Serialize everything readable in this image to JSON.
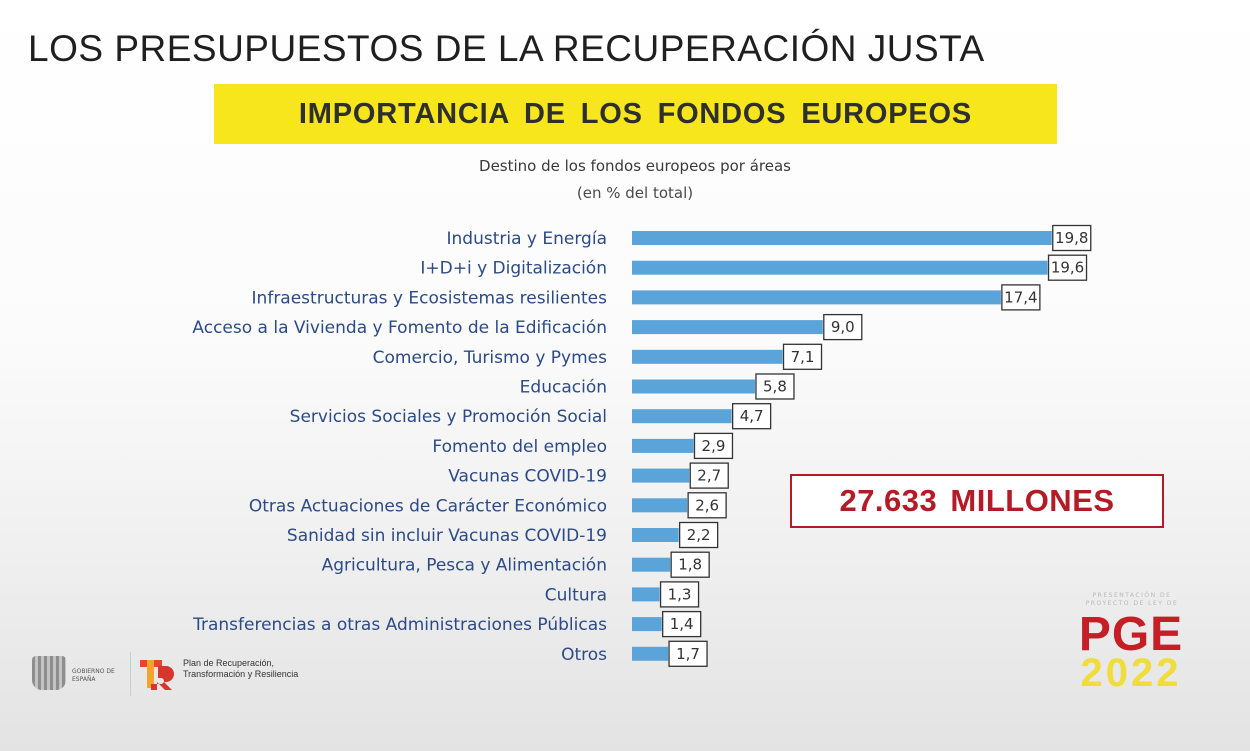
{
  "slide_title": "LOS PRESUPUESTOS DE LA RECUPERACIÓN JUSTA",
  "banner": "IMPORTANCIA DE LOS FONDOS EUROPEOS",
  "total": "27.633 MILLONES",
  "footer": {
    "gov_text": "GOBIERNO DE ESPAÑA",
    "plan_text": "Plan de Recuperación, Transformación y Resiliencia"
  },
  "pge_logo": {
    "small_text": "PRESENTACIÓN DE PROYECTO DE LEY DE",
    "brand": "PGE",
    "year": "2022"
  },
  "colors": {
    "bar": "#5aa4da",
    "label": "#2b4a86",
    "banner": "#f7e61c",
    "total": "#b31b27"
  },
  "chart_data": {
    "type": "bar",
    "orientation": "horizontal",
    "title": "Destino de los fondos europeos por áreas",
    "subtitle": "(en % del total)",
    "categories": [
      "Industria y Energía",
      "I+D+i y Digitalización",
      "Infraestructuras y Ecosistemas resilientes",
      "Acceso a la Vivienda y Fomento de la Edificación",
      "Comercio, Turismo y Pymes",
      "Educación",
      "Servicios Sociales y Promoción Social",
      "Fomento del empleo",
      "Vacunas COVID-19",
      "Otras Actuaciones de Carácter Económico",
      "Sanidad sin incluir Vacunas COVID-19",
      "Agricultura, Pesca y Alimentación",
      "Cultura",
      "Transferencias a otras Administraciones Públicas",
      "Otros"
    ],
    "values": [
      19.8,
      19.6,
      17.4,
      9.0,
      7.1,
      5.8,
      4.7,
      2.9,
      2.7,
      2.6,
      2.2,
      1.8,
      1.3,
      1.4,
      1.7
    ],
    "value_labels": [
      "19,8",
      "19,6",
      "17,4",
      "9,0",
      "7,1",
      "5,8",
      "4,7",
      "2,9",
      "2,7",
      "2,6",
      "2,2",
      "1,8",
      "1,3",
      "1,4",
      "1,7"
    ],
    "xlim": [
      0,
      20
    ],
    "grid": false,
    "legend": false
  }
}
